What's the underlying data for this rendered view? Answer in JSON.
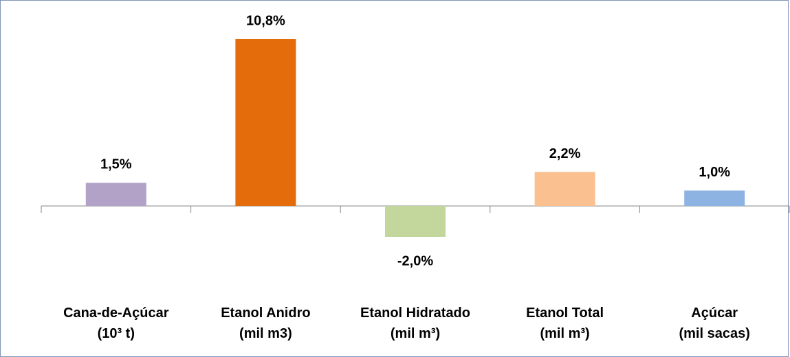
{
  "chart_data": {
    "type": "bar",
    "categories": [
      "Cana-de-Açúcar\n(10³ t)",
      "Etanol Anidro\n(mil m3)",
      "Etanol Hidratado\n(mil m³)",
      "Etanol Total\n(mil m³)",
      "Açúcar\n(mil sacas)"
    ],
    "values": [
      1.5,
      10.8,
      -2.0,
      2.2,
      1.0
    ],
    "value_labels": [
      "1,5%",
      "10,8%",
      "-2,0%",
      "2,2%",
      "1,0%"
    ],
    "colors": [
      "#b3a2c7",
      "#e46c0a",
      "#c3d69b",
      "#fac090",
      "#8db3e2"
    ],
    "ylim": [
      -4,
      12
    ]
  }
}
